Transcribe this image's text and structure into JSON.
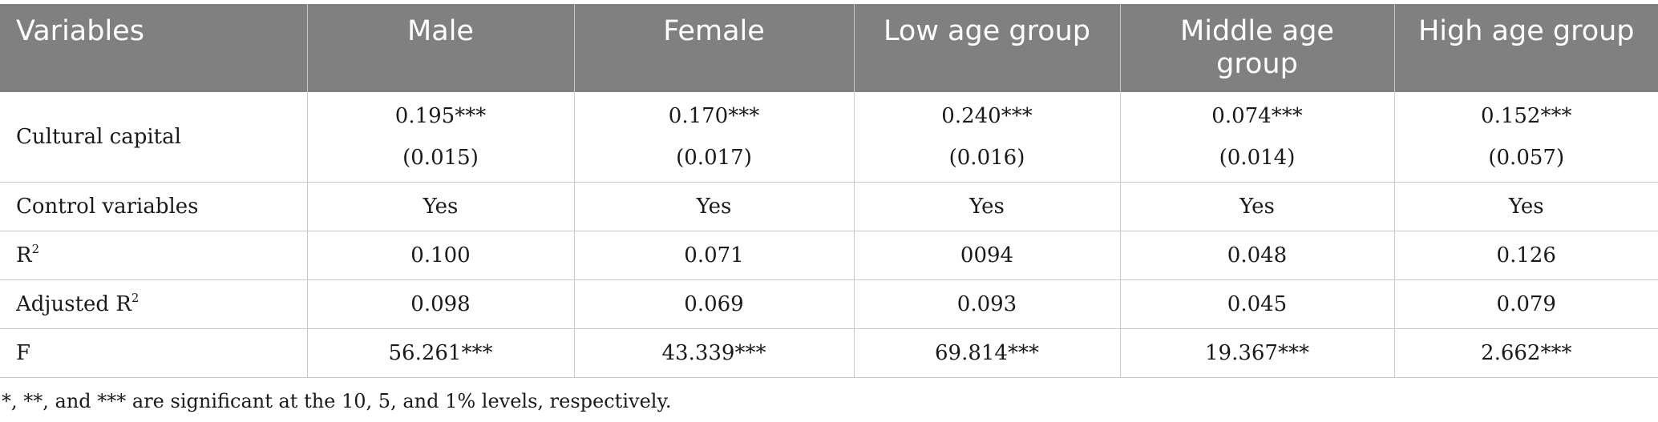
{
  "table": {
    "headers": [
      "Variables",
      "Male",
      "Female",
      "Low age group",
      "Middle age group",
      "High age group"
    ],
    "rows": {
      "cultural_capital": {
        "label": "Cultural capital",
        "coefficients": [
          "0.195***",
          "0.170***",
          "0.240***",
          "0.074***",
          "0.152***"
        ],
        "std_errors": [
          "(0.015)",
          "(0.017)",
          "(0.016)",
          "(0.014)",
          "(0.057)"
        ]
      },
      "control_variables": {
        "label": "Control variables",
        "values": [
          "Yes",
          "Yes",
          "Yes",
          "Yes",
          "Yes"
        ]
      },
      "r2": {
        "label": "R",
        "sup": "2",
        "values": [
          "0.100",
          "0.071",
          "0094",
          "0.048",
          "0.126"
        ]
      },
      "adjusted_r2": {
        "label": "Adjusted R",
        "sup": "2",
        "values": [
          "0.098",
          "0.069",
          "0.093",
          "0.045",
          "0.079"
        ]
      },
      "f": {
        "label": "F",
        "values": [
          "56.261***",
          "43.339***",
          "69.814***",
          "19.367***",
          "2.662***"
        ]
      }
    }
  },
  "note": "*, **, and *** are significant at the 10, 5, and 1% levels, respectively.",
  "colors": {
    "header_bg": "#7f807f",
    "header_text": "#ffffff",
    "grid": "#c8c8c8"
  }
}
